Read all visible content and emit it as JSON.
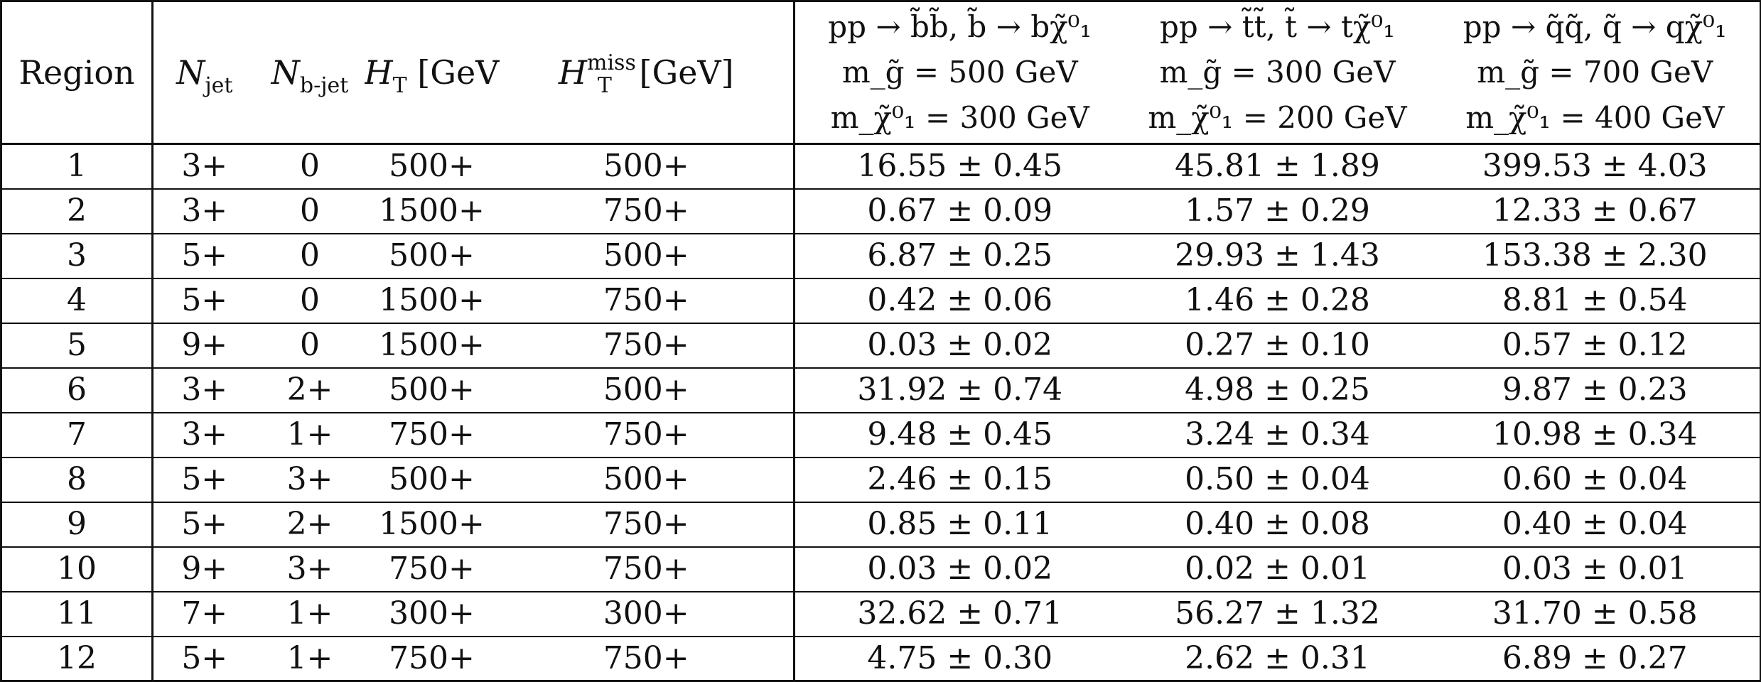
{
  "table": {
    "header": {
      "region": "Region",
      "njet_main": "N",
      "njet_sub": "jet",
      "nbjet_main": "N",
      "nbjet_sub": "b-jet",
      "ht_main": "H",
      "ht_sub": "T",
      "ht_unit": "[GeV]",
      "htmiss_main": "H",
      "htmiss_sup": "miss",
      "htmiss_sub": "T",
      "htmiss_unit": "[GeV]",
      "signals": [
        {
          "process": "pp → b̃b̃, b̃ → bχ̃⁰₁",
          "mass1": "m_g̃ = 500 GeV",
          "mass2": "m_χ̃⁰₁ = 300 GeV"
        },
        {
          "process": "pp → t̃t̃, t̃ → tχ̃⁰₁",
          "mass1": "m_g̃ = 300 GeV",
          "mass2": "m_χ̃⁰₁ = 200 GeV"
        },
        {
          "process": "pp → q̃q̃, q̃ → qχ̃⁰₁",
          "mass1": "m_g̃ = 700 GeV",
          "mass2": "m_χ̃⁰₁ = 400 GeV"
        }
      ]
    },
    "rows": [
      [
        "1",
        "3+",
        "0",
        "500+",
        "500+",
        "16.55 ± 0.45",
        "45.81 ± 1.89",
        "399.53 ± 4.03"
      ],
      [
        "2",
        "3+",
        "0",
        "1500+",
        "750+",
        "0.67 ± 0.09",
        "1.57 ± 0.29",
        "12.33 ± 0.67"
      ],
      [
        "3",
        "5+",
        "0",
        "500+",
        "500+",
        "6.87 ± 0.25",
        "29.93 ± 1.43",
        "153.38 ± 2.30"
      ],
      [
        "4",
        "5+",
        "0",
        "1500+",
        "750+",
        "0.42 ± 0.06",
        "1.46 ± 0.28",
        "8.81 ± 0.54"
      ],
      [
        "5",
        "9+",
        "0",
        "1500+",
        "750+",
        "0.03 ± 0.02",
        "0.27 ± 0.10",
        "0.57 ± 0.12"
      ],
      [
        "6",
        "3+",
        "2+",
        "500+",
        "500+",
        "31.92 ± 0.74",
        "4.98 ± 0.25",
        "9.87 ± 0.23"
      ],
      [
        "7",
        "3+",
        "1+",
        "750+",
        "750+",
        "9.48 ± 0.45",
        "3.24 ± 0.34",
        "10.98 ± 0.34"
      ],
      [
        "8",
        "5+",
        "3+",
        "500+",
        "500+",
        "2.46 ± 0.15",
        "0.50 ± 0.04",
        "0.60 ± 0.04"
      ],
      [
        "9",
        "5+",
        "2+",
        "1500+",
        "750+",
        "0.85 ± 0.11",
        "0.40 ± 0.08",
        "0.40 ± 0.04"
      ],
      [
        "10",
        "9+",
        "3+",
        "750+",
        "750+",
        "0.03 ± 0.02",
        "0.02 ± 0.01",
        "0.03 ± 0.01"
      ],
      [
        "11",
        "7+",
        "1+",
        "300+",
        "300+",
        "32.62 ± 0.71",
        "56.27 ± 1.32",
        "31.70 ± 0.58"
      ],
      [
        "12",
        "5+",
        "1+",
        "750+",
        "750+",
        "4.75 ± 0.30",
        "2.62 ± 0.31",
        "6.89 ± 0.27"
      ]
    ]
  }
}
